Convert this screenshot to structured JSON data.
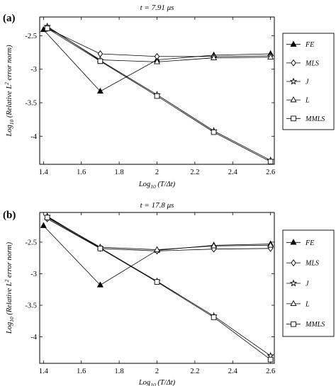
{
  "chart_data": [
    {
      "type": "line",
      "panel_label": "(a)",
      "title": "t = 7.91 μs",
      "xlabel_parts": [
        "Log",
        "10",
        " (T/Δt)"
      ],
      "ylabel_parts": [
        "Log",
        "10",
        " (Relative L",
        "2",
        " error norm)"
      ],
      "xlim": [
        1.38,
        2.62
      ],
      "ylim": [
        -4.42,
        -2.22
      ],
      "xticks": [
        1.4,
        1.6,
        1.8,
        2,
        2.2,
        2.4,
        2.6
      ],
      "xtick_labels": [
        "1.4",
        "1.6",
        "1.8",
        "2",
        "2.2",
        "2.4",
        "2.6"
      ],
      "yticks": [
        -2.5,
        -3,
        -3.5,
        -4
      ],
      "ytick_labels": [
        "-2.5",
        "-3",
        "-3.5",
        "-4"
      ],
      "grid": false,
      "legend_position": "right",
      "series": [
        {
          "name": "FE",
          "marker": "triangle-filled",
          "x": [
            1.4,
            1.7,
            2.0,
            2.3,
            2.6
          ],
          "y": [
            -2.41,
            -3.33,
            -2.86,
            -2.79,
            -2.77
          ]
        },
        {
          "name": "MLS",
          "marker": "diamond",
          "x": [
            1.42,
            1.7,
            2.0,
            2.3,
            2.6
          ],
          "y": [
            -2.39,
            -2.77,
            -2.81,
            -2.81,
            -2.8
          ]
        },
        {
          "name": "J",
          "marker": "star",
          "x": [
            1.42,
            1.7,
            2.0,
            2.3,
            2.6
          ],
          "y": [
            -2.36,
            -2.87,
            -3.38,
            -3.92,
            -4.36
          ]
        },
        {
          "name": "L",
          "marker": "triangle",
          "x": [
            1.42,
            1.7,
            2.0,
            2.3,
            2.6
          ],
          "y": [
            -2.37,
            -2.86,
            -2.89,
            -2.83,
            -2.82
          ]
        },
        {
          "name": "MMLS",
          "marker": "square",
          "x": [
            1.42,
            1.7,
            2.0,
            2.3,
            2.6
          ],
          "y": [
            -2.39,
            -2.88,
            -3.4,
            -3.94,
            -4.38
          ]
        }
      ]
    },
    {
      "type": "line",
      "panel_label": "(b)",
      "title": "t = 17.8 μs",
      "xlabel_parts": [
        "Log",
        "10",
        " (T/Δt)"
      ],
      "ylabel_parts": [
        "Log",
        "10",
        " (Relative L",
        "2",
        " error norm)"
      ],
      "xlim": [
        1.38,
        2.62
      ],
      "ylim": [
        -4.42,
        -2.03
      ],
      "xticks": [
        1.4,
        1.6,
        1.8,
        2,
        2.2,
        2.4,
        2.6
      ],
      "xtick_labels": [
        "1.4",
        "1.6",
        "1.8",
        "2",
        "2.2",
        "2.4",
        "2.6"
      ],
      "yticks": [
        -2.5,
        -3,
        -3.5,
        -4
      ],
      "ytick_labels": [
        "-2.5",
        "-3",
        "-3.5",
        "-4"
      ],
      "grid": false,
      "legend_position": "right",
      "series": [
        {
          "name": "FE",
          "marker": "triangle-filled",
          "x": [
            1.4,
            1.7,
            2.0,
            2.3,
            2.6
          ],
          "y": [
            -2.24,
            -3.18,
            -2.63,
            -2.55,
            -2.53
          ]
        },
        {
          "name": "MLS",
          "marker": "diamond",
          "x": [
            1.42,
            1.7,
            2.0,
            2.3,
            2.6
          ],
          "y": [
            -2.13,
            -2.6,
            -2.64,
            -2.61,
            -2.6
          ]
        },
        {
          "name": "J",
          "marker": "star",
          "x": [
            1.42,
            1.7,
            2.0,
            2.3,
            2.6
          ],
          "y": [
            -2.09,
            -2.59,
            -3.12,
            -3.67,
            -4.3
          ]
        },
        {
          "name": "L",
          "marker": "triangle",
          "x": [
            1.42,
            1.7,
            2.0,
            2.3,
            2.6
          ],
          "y": [
            -2.1,
            -2.58,
            -2.62,
            -2.56,
            -2.55
          ]
        },
        {
          "name": "MMLS",
          "marker": "square",
          "x": [
            1.42,
            1.7,
            2.0,
            2.3,
            2.6
          ],
          "y": [
            -2.11,
            -2.6,
            -3.13,
            -3.69,
            -4.36
          ]
        }
      ]
    }
  ]
}
